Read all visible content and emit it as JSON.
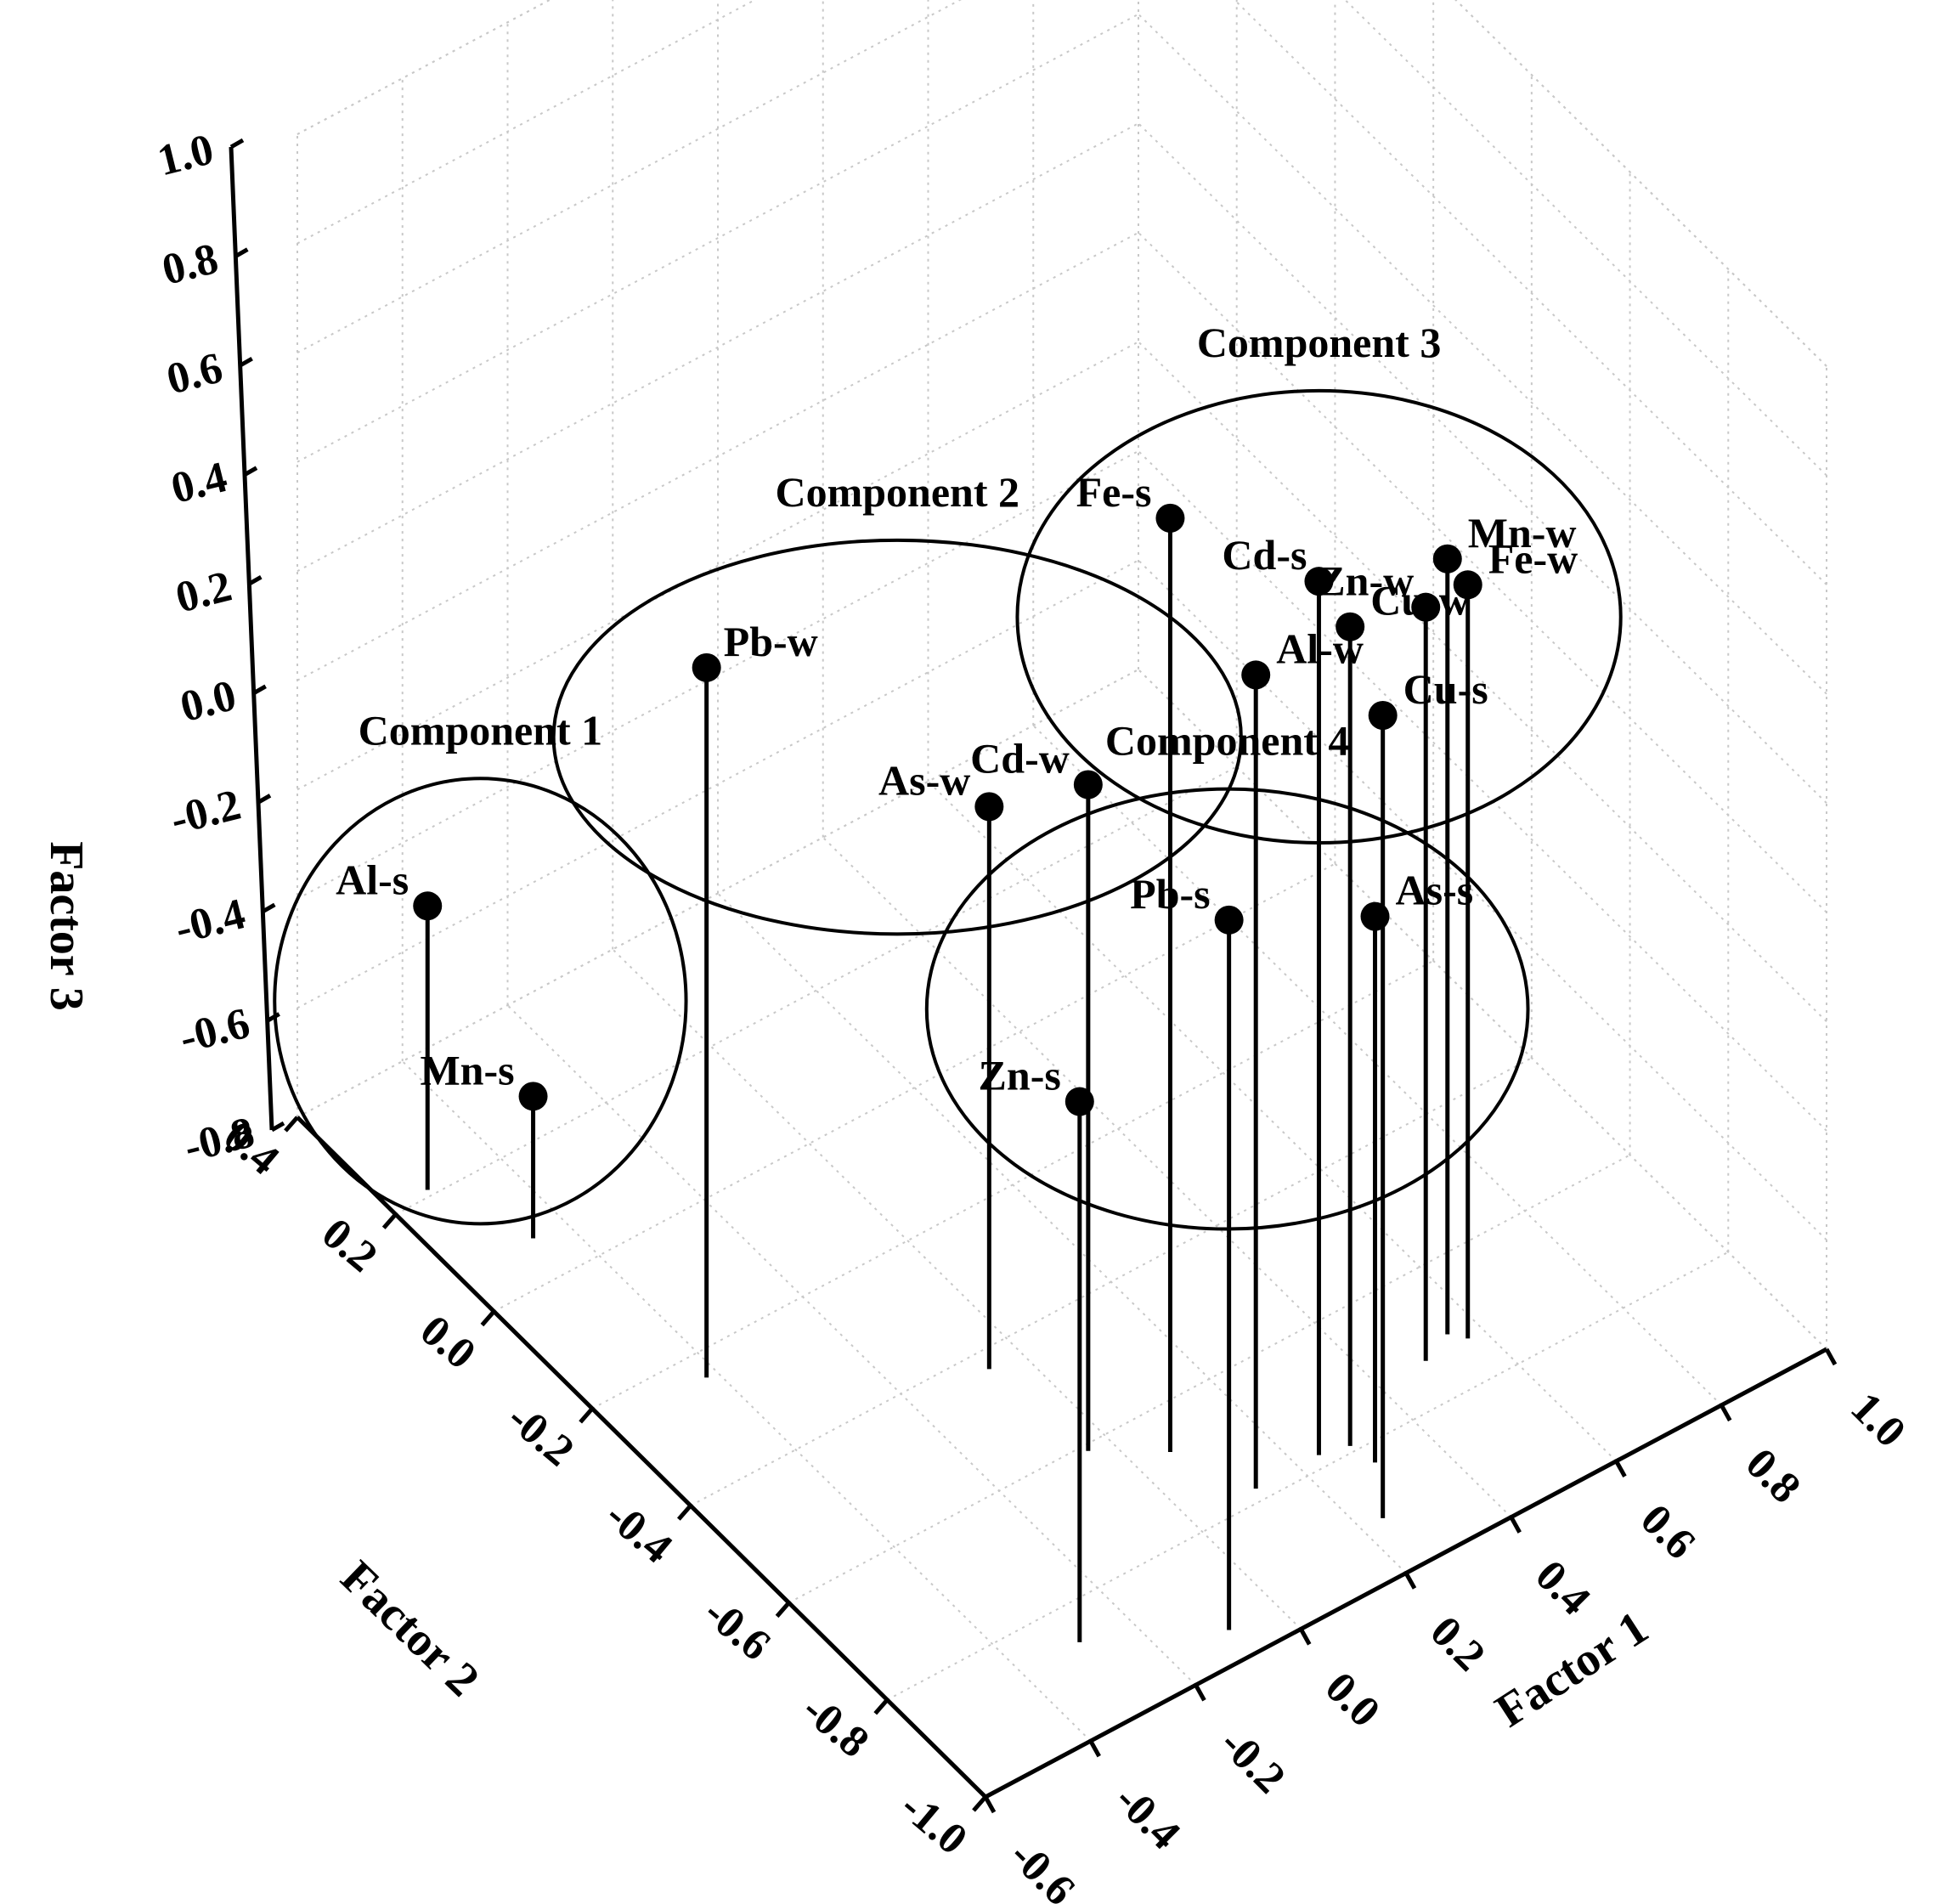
{
  "chart_data": {
    "type": "scatter",
    "dims": 3,
    "xlabel": "Factor 1",
    "ylabel": "Factor 2",
    "zlabel": "Factor 3",
    "xlim": [
      -0.6,
      1.0
    ],
    "ylim": [
      -1.0,
      0.4
    ],
    "zlim": [
      -0.8,
      1.0
    ],
    "x_ticks": [
      "-0.6",
      "-0.4",
      "-0.2",
      "0.0",
      "0.2",
      "0.4",
      "0.6",
      "0.8",
      "1.0"
    ],
    "y_ticks": [
      "-1.0",
      "-0.8",
      "-0.6",
      "-0.4",
      "-0.2",
      "0.0",
      "0.2",
      "0.4"
    ],
    "z_ticks": [
      "-0.8",
      "-0.6",
      "-0.4",
      "-0.2",
      "0.0",
      "0.2",
      "0.4",
      "0.6",
      "0.8",
      "1.0"
    ],
    "grid": true,
    "points": [
      {
        "label": "Al-s",
        "x": -0.53,
        "y": 0.21,
        "z": -0.28
      },
      {
        "label": "Mn-s",
        "x": -0.46,
        "y": 0.07,
        "z": -0.54
      },
      {
        "label": "Pb-w",
        "x": -0.42,
        "y": -0.24,
        "z": 0.5
      },
      {
        "label": "As-w",
        "x": -0.06,
        "y": -0.43,
        "z": 0.23
      },
      {
        "label": "Cd-w",
        "x": -0.04,
        "y": -0.61,
        "z": 0.42
      },
      {
        "label": "Zn-s",
        "x": -0.29,
        "y": -0.86,
        "z": 0.19
      },
      {
        "label": "Fe-s",
        "x": 0.06,
        "y": -0.67,
        "z": 0.91
      },
      {
        "label": "Al-w",
        "x": 0.12,
        "y": -0.78,
        "z": 0.69
      },
      {
        "label": "Cd-s",
        "x": 0.24,
        "y": -0.78,
        "z": 0.8
      },
      {
        "label": "Cu-w",
        "x": 0.29,
        "y": -0.79,
        "z": 0.7
      },
      {
        "label": "Cu-s",
        "x": 0.24,
        "y": -0.91,
        "z": 0.67
      },
      {
        "label": "Zn-w",
        "x": 0.49,
        "y": -0.73,
        "z": 0.58
      },
      {
        "label": "Mn-w",
        "x": 0.55,
        "y": -0.71,
        "z": 0.62
      },
      {
        "label": "Fe-w",
        "x": 0.57,
        "y": -0.73,
        "z": 0.58
      },
      {
        "label": "Pb-s",
        "x": -0.09,
        "y": -0.95,
        "z": 0.5
      },
      {
        "label": "As-s",
        "x": 0.3,
        "y": -0.83,
        "z": 0.2
      }
    ],
    "groups": [
      {
        "name": "Component 1",
        "members": [
          "Al-s",
          "Mn-s"
        ]
      },
      {
        "name": "Component 2",
        "members": [
          "Pb-w",
          "As-w",
          "Cd-w"
        ]
      },
      {
        "name": "Component 3",
        "members": [
          "Fe-s",
          "Zn-w",
          "Mn-w",
          "Fe-w",
          "Cd-s",
          "Al-w",
          "Cu-w",
          "Cu-s"
        ]
      },
      {
        "name": "Component 4",
        "members": [
          "Zn-s",
          "Pb-s",
          "As-s"
        ]
      }
    ]
  }
}
